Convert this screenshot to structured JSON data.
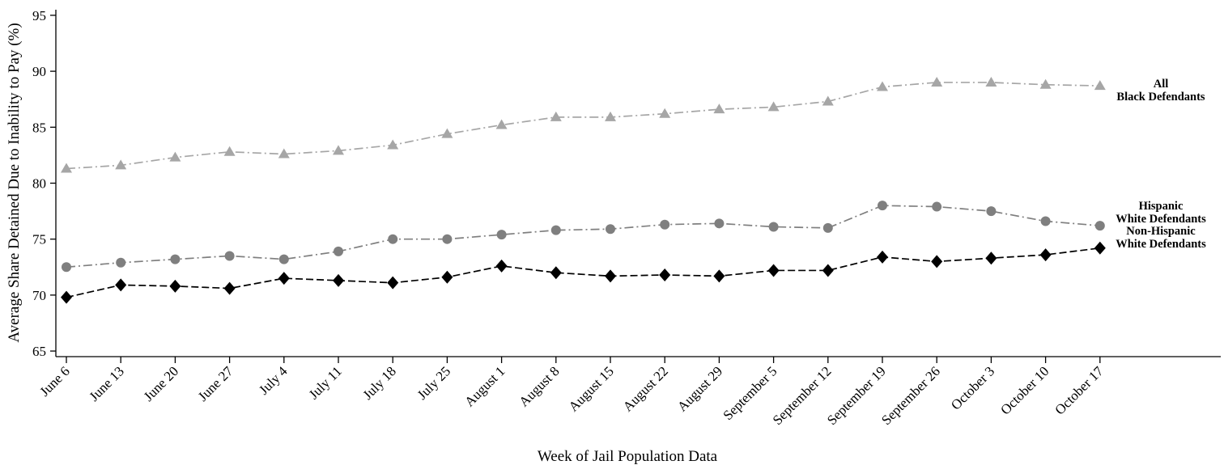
{
  "chart_data": {
    "type": "line",
    "title": "",
    "xlabel": "Week of Jail Population Data",
    "ylabel": "Average Share Detained Due to Inability to Pay (%)",
    "ylim": [
      64.5,
      95.5
    ],
    "yticks": [
      65,
      70,
      75,
      80,
      85,
      90,
      95
    ],
    "grid": false,
    "categories": [
      "June 6",
      "June 13",
      "June 20",
      "June 27",
      "July 4",
      "July 11",
      "July 18",
      "July 25",
      "August 1",
      "August 8",
      "August 15",
      "August 22",
      "August 29",
      "September 5",
      "September 12",
      "September 19",
      "September 26",
      "October 3",
      "October 10",
      "October 17"
    ],
    "series": [
      {
        "name": "All Black Defendants",
        "label_lines": [
          "All",
          "Black Defendants"
        ],
        "color": "#a6a6a6",
        "marker": "triangle",
        "line_style": "dash-dot",
        "values": [
          81.3,
          81.6,
          82.3,
          82.8,
          82.6,
          82.9,
          83.4,
          84.4,
          85.2,
          85.9,
          85.9,
          86.2,
          86.6,
          86.8,
          87.3,
          88.6,
          89.0,
          89.0,
          88.8,
          88.7
        ]
      },
      {
        "name": "Hispanic White Defendants",
        "label_lines": [
          "Hispanic",
          "White Defendants"
        ],
        "color": "#7f7f7f",
        "marker": "circle",
        "line_style": "dash-dot",
        "values": [
          72.5,
          72.9,
          73.2,
          73.5,
          73.2,
          73.9,
          75.0,
          75.0,
          75.4,
          75.8,
          75.9,
          76.3,
          76.4,
          76.1,
          76.0,
          78.0,
          77.9,
          77.5,
          76.6,
          76.2
        ]
      },
      {
        "name": "Non-Hispanic White Defendants",
        "label_lines": [
          "Non-Hispanic",
          "White Defendants"
        ],
        "color": "#000000",
        "marker": "diamond",
        "line_style": "dashed",
        "values": [
          69.8,
          70.9,
          70.8,
          70.6,
          71.5,
          71.3,
          71.1,
          71.6,
          72.6,
          72.0,
          71.7,
          71.8,
          71.7,
          72.2,
          72.2,
          73.4,
          73.0,
          73.3,
          73.6,
          74.2
        ]
      }
    ]
  }
}
